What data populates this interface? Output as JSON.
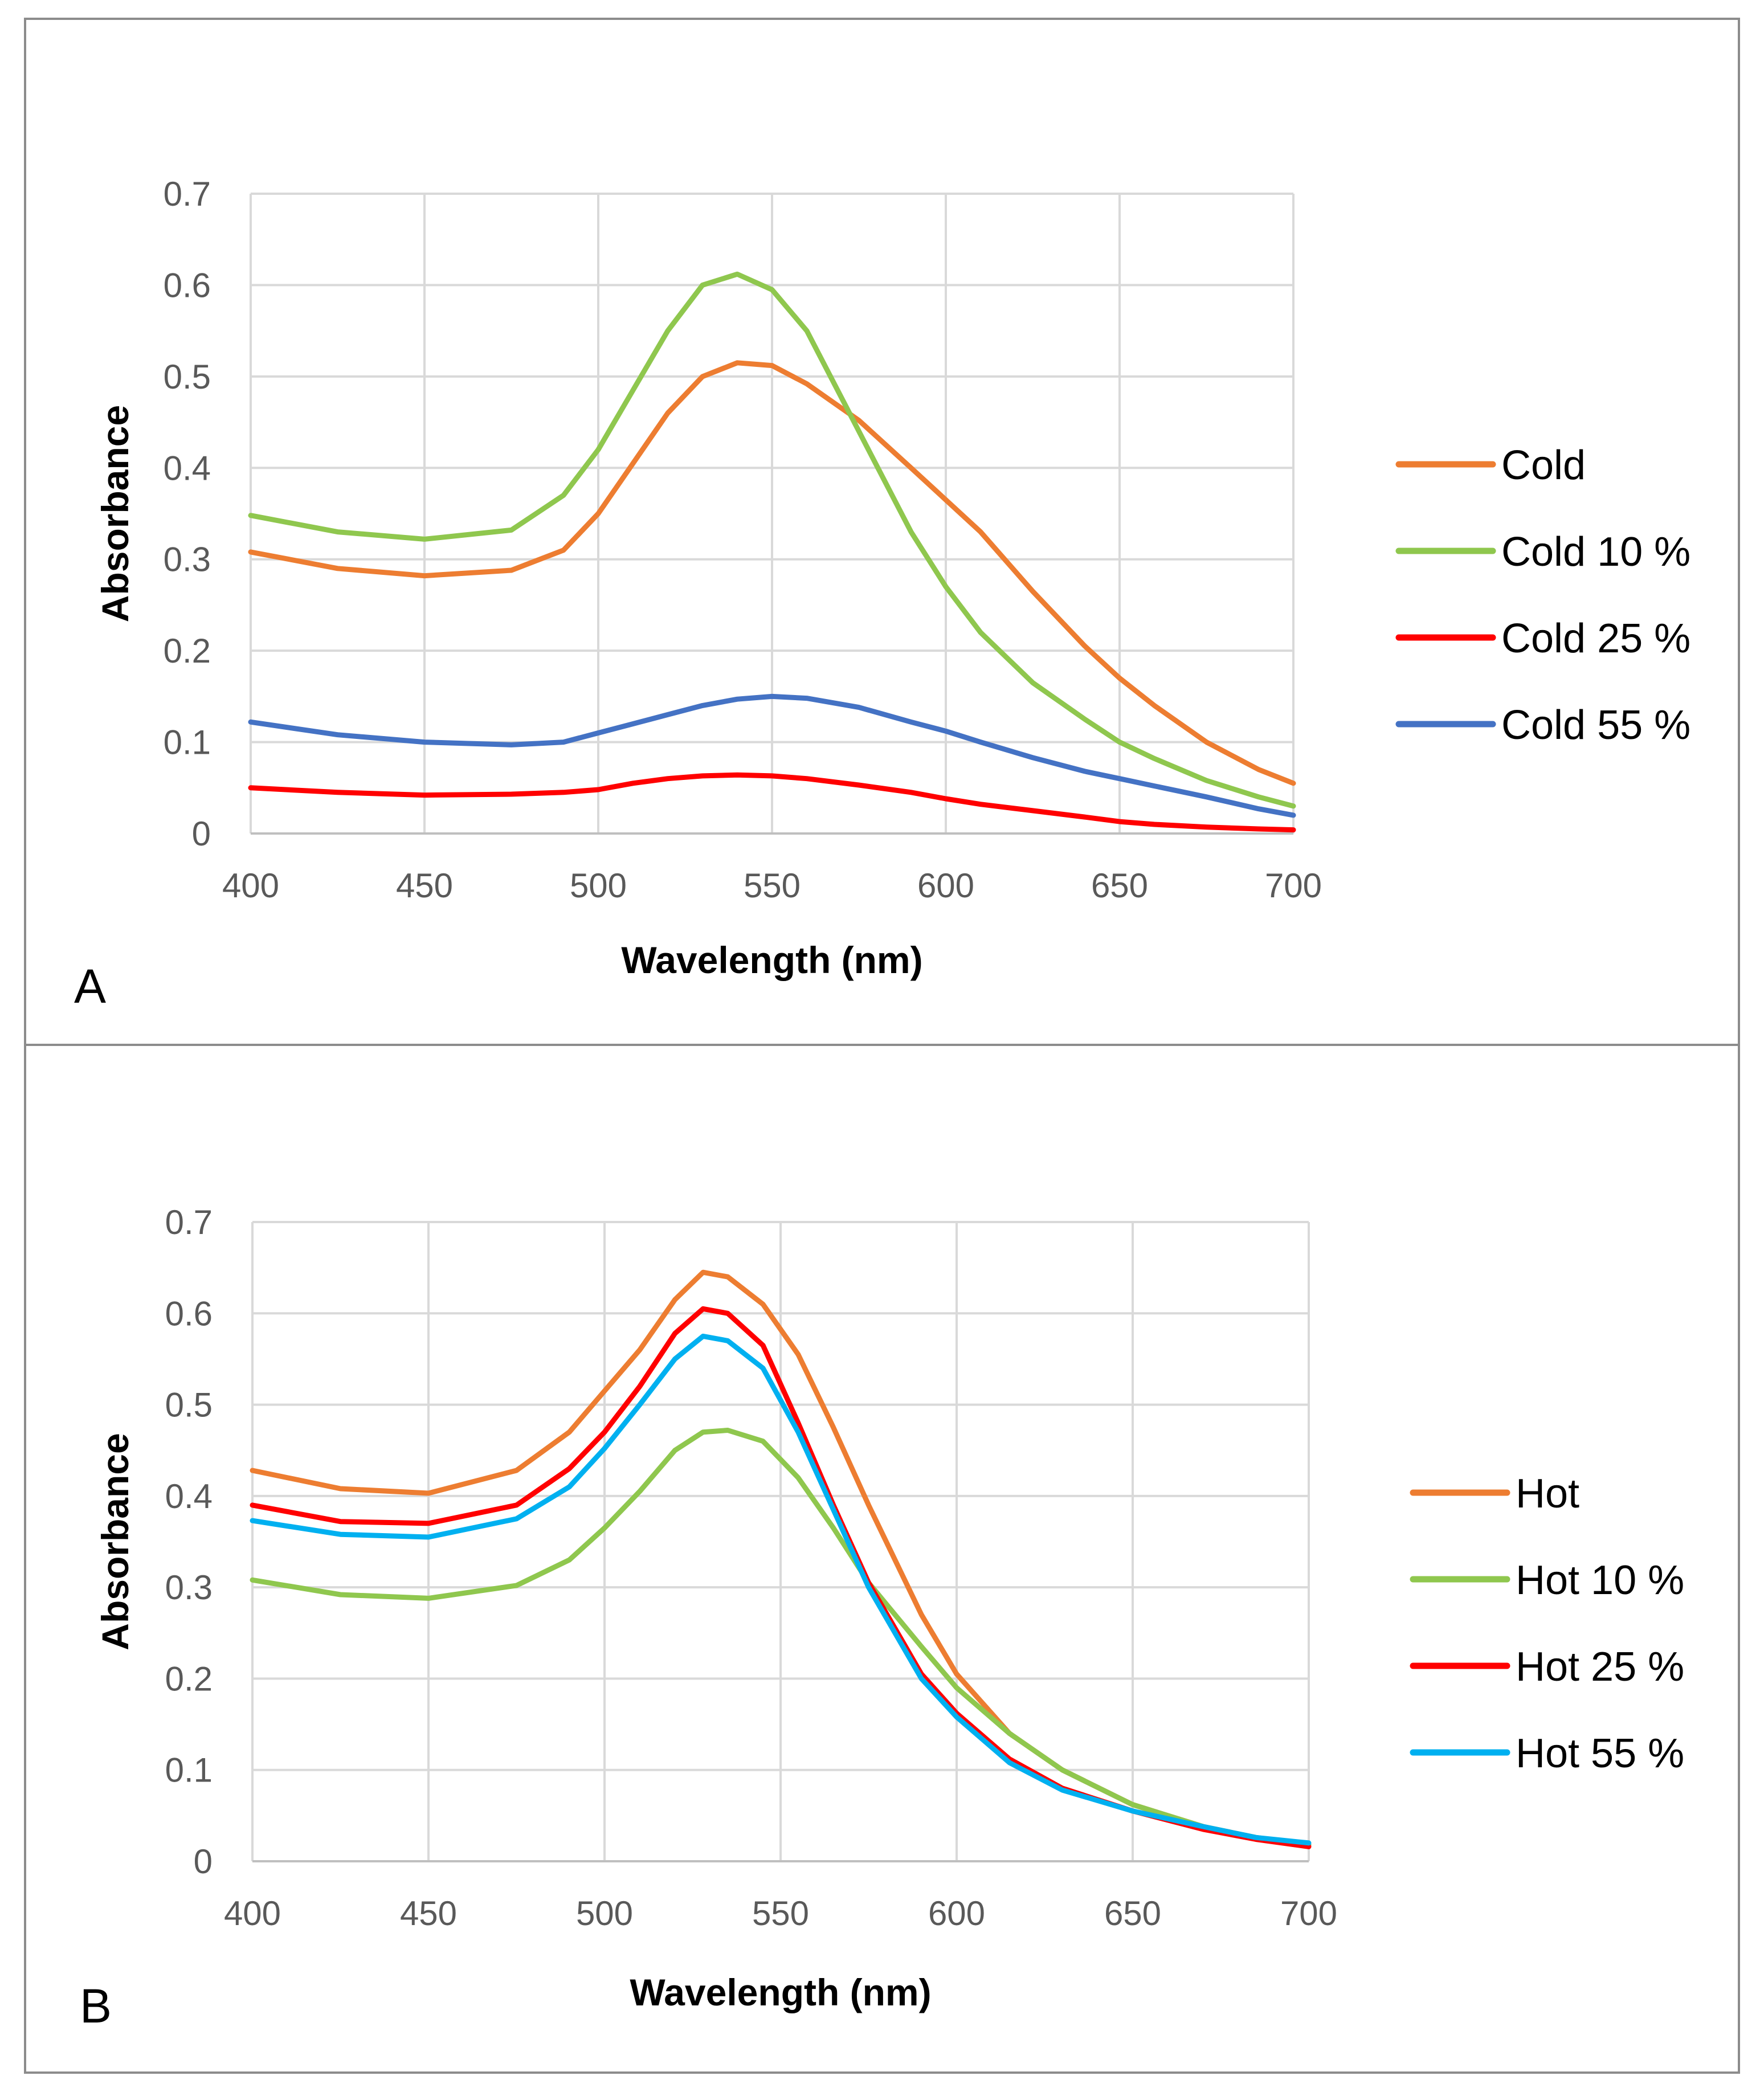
{
  "figure": {
    "panels": [
      "A",
      "B"
    ]
  },
  "chart_data": [
    {
      "type": "line",
      "panel_label": "A",
      "title": "",
      "xlabel": "Wavelength (nm)",
      "ylabel": "Absorbance",
      "xlim": [
        400,
        700
      ],
      "ylim": [
        0,
        0.7
      ],
      "x_ticks": [
        "400",
        "450",
        "500",
        "550",
        "600",
        "650",
        "700"
      ],
      "y_ticks": [
        "0",
        "0.1",
        "0.2",
        "0.3",
        "0.4",
        "0.5",
        "0.6",
        "0.7"
      ],
      "grid": true,
      "legend_position": "right",
      "x": [
        400,
        425,
        450,
        475,
        490,
        500,
        510,
        520,
        530,
        540,
        550,
        560,
        575,
        590,
        600,
        610,
        625,
        640,
        650,
        660,
        675,
        690,
        700
      ],
      "series": [
        {
          "name": "Cold",
          "color": "#ED7D31",
          "values": [
            0.308,
            0.29,
            0.282,
            0.288,
            0.31,
            0.35,
            0.405,
            0.46,
            0.5,
            0.515,
            0.512,
            0.492,
            0.452,
            0.4,
            0.365,
            0.33,
            0.265,
            0.205,
            0.17,
            0.14,
            0.1,
            0.07,
            0.055
          ]
        },
        {
          "name": "Cold 10 %",
          "color": "#8FC74E",
          "values": [
            0.348,
            0.33,
            0.322,
            0.332,
            0.37,
            0.42,
            0.485,
            0.55,
            0.6,
            0.612,
            0.595,
            0.55,
            0.44,
            0.33,
            0.27,
            0.22,
            0.165,
            0.125,
            0.1,
            0.082,
            0.058,
            0.04,
            0.03
          ]
        },
        {
          "name": "Cold 25 %",
          "color": "#FF0000",
          "values": [
            0.05,
            0.045,
            0.042,
            0.043,
            0.045,
            0.048,
            0.055,
            0.06,
            0.063,
            0.064,
            0.063,
            0.06,
            0.053,
            0.045,
            0.038,
            0.032,
            0.025,
            0.018,
            0.013,
            0.01,
            0.007,
            0.005,
            0.004
          ]
        },
        {
          "name": "Cold 55 %",
          "color": "#4472C4",
          "values": [
            0.122,
            0.108,
            0.1,
            0.097,
            0.1,
            0.11,
            0.12,
            0.13,
            0.14,
            0.147,
            0.15,
            0.148,
            0.138,
            0.122,
            0.112,
            0.1,
            0.083,
            0.068,
            0.06,
            0.052,
            0.04,
            0.027,
            0.02
          ]
        }
      ]
    },
    {
      "type": "line",
      "panel_label": "B",
      "title": "",
      "xlabel": "Wavelength (nm)",
      "ylabel": "Absorbance",
      "xlim": [
        400,
        700
      ],
      "ylim": [
        0,
        0.7
      ],
      "x_ticks": [
        "400",
        "450",
        "500",
        "550",
        "600",
        "650",
        "700"
      ],
      "y_ticks": [
        "0",
        "0.1",
        "0.2",
        "0.3",
        "0.4",
        "0.5",
        "0.6",
        "0.7"
      ],
      "grid": true,
      "legend_position": "right",
      "x": [
        400,
        425,
        450,
        475,
        490,
        500,
        510,
        520,
        528,
        535,
        545,
        555,
        565,
        575,
        590,
        600,
        615,
        630,
        650,
        670,
        685,
        700
      ],
      "series": [
        {
          "name": "Hot",
          "color": "#ED7D31",
          "values": [
            0.428,
            0.408,
            0.403,
            0.428,
            0.47,
            0.515,
            0.56,
            0.615,
            0.645,
            0.64,
            0.61,
            0.555,
            0.475,
            0.39,
            0.27,
            0.205,
            0.14,
            0.1,
            0.062,
            0.038,
            0.026,
            0.018
          ]
        },
        {
          "name": "Hot 10 %",
          "color": "#8FC74E",
          "values": [
            0.308,
            0.292,
            0.288,
            0.302,
            0.33,
            0.365,
            0.405,
            0.45,
            0.47,
            0.472,
            0.46,
            0.42,
            0.365,
            0.305,
            0.235,
            0.19,
            0.14,
            0.1,
            0.062,
            0.038,
            0.026,
            0.018
          ]
        },
        {
          "name": "Hot 25 %",
          "color": "#FF0000",
          "values": [
            0.39,
            0.372,
            0.37,
            0.39,
            0.43,
            0.47,
            0.52,
            0.578,
            0.605,
            0.6,
            0.565,
            0.48,
            0.39,
            0.305,
            0.205,
            0.162,
            0.112,
            0.08,
            0.055,
            0.035,
            0.024,
            0.016
          ]
        },
        {
          "name": "Hot 55 %",
          "color": "#00B0F0",
          "values": [
            0.373,
            0.358,
            0.355,
            0.375,
            0.41,
            0.452,
            0.5,
            0.55,
            0.575,
            0.57,
            0.54,
            0.47,
            0.385,
            0.3,
            0.2,
            0.158,
            0.108,
            0.078,
            0.055,
            0.038,
            0.026,
            0.02
          ]
        }
      ]
    }
  ]
}
